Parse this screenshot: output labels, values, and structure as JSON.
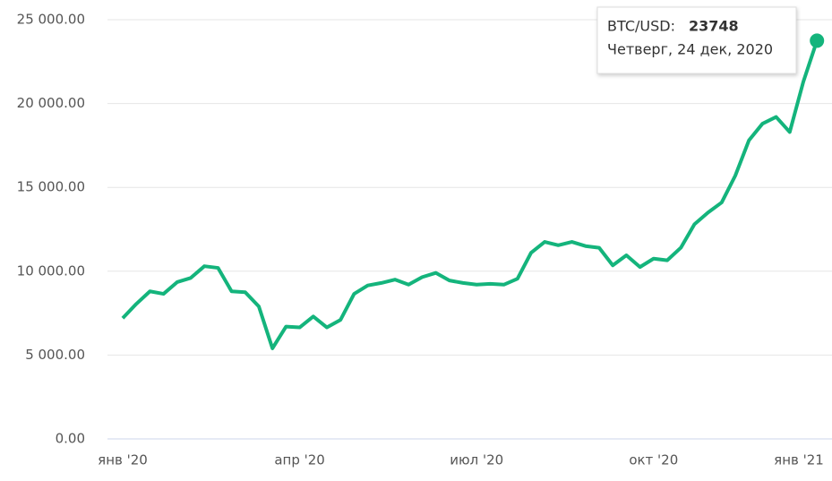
{
  "chart_data": {
    "type": "line",
    "categories": [
      "янв '20",
      null,
      null,
      null,
      null,
      null,
      null,
      null,
      null,
      null,
      null,
      null,
      null,
      "апр '20",
      null,
      null,
      null,
      null,
      null,
      null,
      null,
      null,
      null,
      null,
      null,
      null,
      "июл '20",
      null,
      null,
      null,
      null,
      null,
      null,
      null,
      null,
      null,
      null,
      null,
      null,
      "окт '20",
      null,
      null,
      null,
      null,
      null,
      null,
      null,
      null,
      null,
      null,
      null,
      null,
      "янв '21"
    ],
    "series": [
      {
        "name": "BTC/USD",
        "color": "#14b47c",
        "values": [
          7200,
          8050,
          8800,
          8650,
          9350,
          9600,
          10300,
          10200,
          8800,
          8750,
          7900,
          5400,
          6700,
          6650,
          7300,
          6650,
          7100,
          8650,
          9150,
          9300,
          9500,
          9200,
          9650,
          9900,
          9450,
          9300,
          9200,
          9250,
          9200,
          9550,
          11100,
          11750,
          11550,
          11750,
          11500,
          11400,
          10350,
          10950,
          10250,
          10750,
          10650,
          11400,
          12800,
          13500,
          14100,
          15700,
          17800,
          18800,
          19200,
          18300,
          21300,
          23748,
          null
        ]
      }
    ],
    "ylim": [
      0,
      25000
    ],
    "yticks": [
      {
        "value": 0,
        "label": "0.00"
      },
      {
        "value": 5000,
        "label": "5 000.00"
      },
      {
        "value": 10000,
        "label": "10 000.00"
      },
      {
        "value": 15000,
        "label": "15 000.00"
      },
      {
        "value": 20000,
        "label": "20 000.00"
      },
      {
        "value": 25000,
        "label": "25 000.00"
      }
    ],
    "grid": true,
    "tooltip": {
      "label": "BTC/USD:",
      "date": "Четверг, 24 дек, 2020"
    }
  }
}
